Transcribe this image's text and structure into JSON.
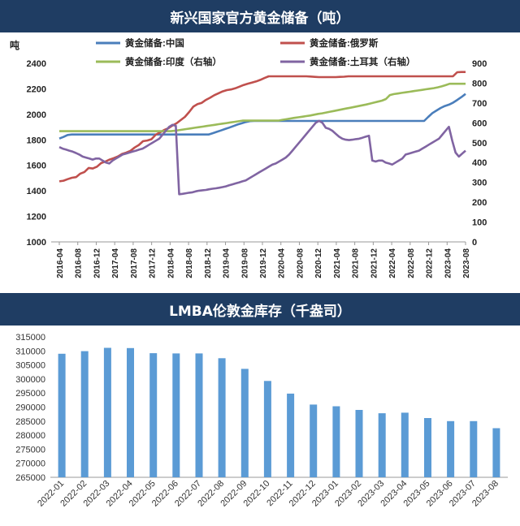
{
  "chart_data": [
    {
      "type": "line",
      "title": "新兴国家官方黄金储备（吨）",
      "ylabel_left": "吨",
      "ylim_left": [
        1000,
        2400
      ],
      "yticks_left": [
        "1000",
        "1200",
        "1400",
        "1600",
        "1800",
        "2000",
        "2200",
        "2400"
      ],
      "ylim_right": [
        0,
        900
      ],
      "yticks_right": [
        "0",
        "100",
        "200",
        "300",
        "400",
        "500",
        "600",
        "700",
        "800",
        "900"
      ],
      "x_labels": [
        "2016-04",
        "2016-08",
        "2016-12",
        "2017-04",
        "2017-08",
        "2017-12",
        "2018-04",
        "2018-08",
        "2018-12",
        "2019-04",
        "2019-08",
        "2019-12",
        "2020-04",
        "2020-08",
        "2020-12",
        "2021-04",
        "2021-08",
        "2021-12",
        "2022-04",
        "2022-08",
        "2022-12",
        "2023-04",
        "2023-08"
      ],
      "series": [
        {
          "name": "黄金储备:中国",
          "color": "#4a7ebb",
          "axis": "left",
          "values": [
            1810,
            1823,
            1838,
            1842,
            1842,
            1842,
            1842,
            1842,
            1842,
            1842,
            1842,
            1842,
            1842,
            1842,
            1842,
            1842,
            1842,
            1842,
            1842,
            1842,
            1842,
            1842,
            1842,
            1842,
            1842,
            1842,
            1842,
            1842,
            1842,
            1842,
            1842,
            1842,
            1842,
            1842,
            1842,
            1842,
            1842,
            1852,
            1863,
            1874,
            1885,
            1896,
            1908,
            1920,
            1930,
            1940,
            1947,
            1948,
            1948,
            1948,
            1948,
            1948,
            1948,
            1948,
            1948,
            1948,
            1948,
            1948,
            1948,
            1948,
            1948,
            1948,
            1948,
            1948,
            1948,
            1948,
            1948,
            1948,
            1948,
            1948,
            1948,
            1948,
            1948,
            1948,
            1948,
            1948,
            1948,
            1948,
            1948,
            1948,
            1948,
            1948,
            1948,
            1948,
            1948,
            1948,
            1948,
            1948,
            1948,
            1980,
            2010,
            2030,
            2050,
            2065,
            2076,
            2092,
            2113,
            2135,
            2160
          ]
        },
        {
          "name": "黄金储备:俄罗斯",
          "color": "#c0504d",
          "axis": "left",
          "values": [
            1475,
            1480,
            1492,
            1503,
            1508,
            1535,
            1548,
            1580,
            1575,
            1590,
            1618,
            1630,
            1645,
            1657,
            1670,
            1690,
            1700,
            1714,
            1740,
            1760,
            1790,
            1795,
            1805,
            1840,
            1858,
            1877,
            1890,
            1912,
            1930,
            1955,
            1980,
            2018,
            2060,
            2080,
            2090,
            2113,
            2130,
            2150,
            2165,
            2180,
            2190,
            2195,
            2204,
            2217,
            2230,
            2240,
            2249,
            2258,
            2270,
            2285,
            2298,
            2298,
            2298,
            2298,
            2298,
            2298,
            2298,
            2298,
            2298,
            2298,
            2296,
            2294,
            2292,
            2292,
            2292,
            2292,
            2292,
            2294,
            2295,
            2298,
            2298,
            2298,
            2298,
            2298,
            2298,
            2298,
            2298,
            2298,
            2298,
            2298,
            2298,
            2298,
            2298,
            2298,
            2298,
            2298,
            2298,
            2298,
            2298,
            2298,
            2298,
            2298,
            2298,
            2298,
            2298,
            2330,
            2332,
            2332
          ]
        },
        {
          "name": "黄金储备:印度（右轴）",
          "color": "#9bbb59",
          "axis": "right",
          "values": [
            558,
            558,
            558,
            558,
            558,
            558,
            558,
            558,
            558,
            558,
            558,
            558,
            558,
            558,
            558,
            558,
            558,
            558,
            558,
            558,
            558,
            558,
            558,
            558,
            558,
            558,
            558,
            558,
            558,
            560,
            563,
            566,
            569,
            572,
            575,
            578,
            581,
            584,
            587,
            590,
            593,
            596,
            599,
            602,
            605,
            608,
            611,
            611,
            611,
            611,
            611,
            611,
            611,
            611,
            611,
            611,
            615,
            618,
            622,
            625,
            628,
            631,
            634,
            637,
            641,
            645,
            648,
            652,
            656,
            660,
            664,
            668,
            672,
            676,
            680,
            684,
            688,
            692,
            697,
            702,
            707,
            712,
            720,
            740,
            745,
            748,
            751,
            754,
            757,
            760,
            763,
            766,
            769,
            772,
            775,
            779,
            784,
            790,
            797,
            797,
            797,
            797,
            797
          ]
        },
        {
          "name": "黄金储备:土耳其（右轴）",
          "color": "#8064a2",
          "axis": "right",
          "values": [
            478,
            470,
            465,
            460,
            455,
            448,
            440,
            430,
            425,
            420,
            415,
            420,
            420,
            410,
            400,
            395,
            410,
            420,
            430,
            440,
            445,
            450,
            455,
            460,
            465,
            470,
            480,
            490,
            500,
            510,
            520,
            540,
            560,
            580,
            590,
            585,
            240,
            242,
            245,
            248,
            250,
            255,
            258,
            260,
            262,
            265,
            268,
            270,
            273,
            276,
            280,
            285,
            290,
            295,
            300,
            305,
            310,
            320,
            330,
            340,
            350,
            360,
            370,
            380,
            390,
            395,
            405,
            415,
            425,
            440,
            460,
            480,
            500,
            520,
            540,
            560,
            580,
            600,
            610,
            600,
            575,
            570,
            560,
            545,
            530,
            520,
            515,
            513,
            515,
            518,
            520,
            525,
            530,
            535,
            410,
            405,
            410,
            410,
            400,
            395,
            390,
            400,
            410,
            420,
            440,
            445,
            450,
            455,
            460,
            470,
            480,
            490,
            500,
            510,
            520,
            540,
            560,
            580,
            510,
            450,
            430,
            445,
            460
          ]
        }
      ]
    },
    {
      "type": "bar",
      "title": "LMBA伦敦金库存（千盎司）",
      "categories": [
        "2022-01",
        "2022-02",
        "2022-03",
        "2022-04",
        "2022-05",
        "2022-06",
        "2022-07",
        "2022-08",
        "2022-09",
        "2022-10",
        "2022-11",
        "2022-12",
        "2023-01",
        "2023-02",
        "2023-03",
        "2023-04",
        "2023-05",
        "2023-06",
        "2023-07",
        "2023-08"
      ],
      "values": [
        309000,
        309900,
        311100,
        311000,
        309200,
        309100,
        309100,
        307400,
        303600,
        299300,
        294800,
        290900,
        290300,
        289000,
        287800,
        288000,
        286100,
        285000,
        285000,
        282500
      ],
      "color": "#5b9bd5",
      "ylim": [
        265000,
        315000
      ],
      "yticks": [
        "265000",
        "270000",
        "275000",
        "280000",
        "285000",
        "290000",
        "295000",
        "300000",
        "305000",
        "310000",
        "315000"
      ]
    }
  ]
}
